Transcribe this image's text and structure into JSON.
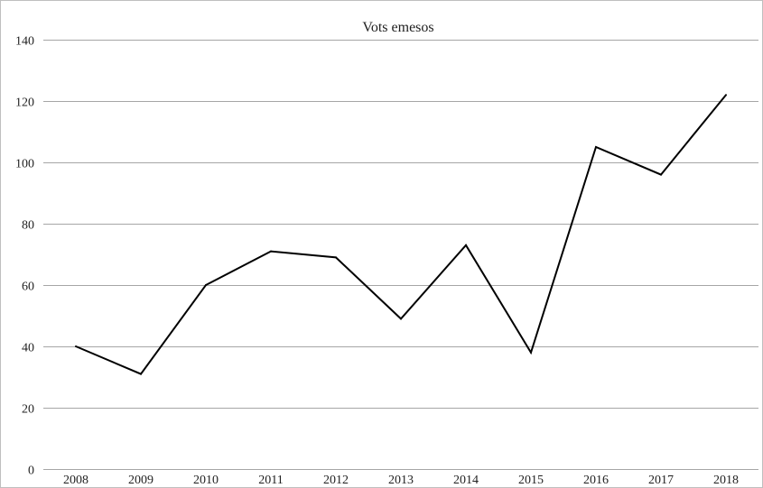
{
  "chart_data": {
    "type": "line",
    "title": "Vots emesos",
    "xlabel": "",
    "ylabel": "",
    "categories": [
      "2008",
      "2009",
      "2010",
      "2011",
      "2012",
      "2013",
      "2014",
      "2015",
      "2016",
      "2017",
      "2018"
    ],
    "series": [
      {
        "values": [
          40,
          31,
          60,
          71,
          69,
          49,
          73,
          38,
          105,
          96,
          122
        ],
        "color": "#000000"
      }
    ],
    "ylim": [
      0,
      140
    ],
    "yticks": [
      "0",
      "20",
      "40",
      "60",
      "80",
      "100",
      "120",
      "140"
    ],
    "grid": true,
    "legend": "none"
  }
}
